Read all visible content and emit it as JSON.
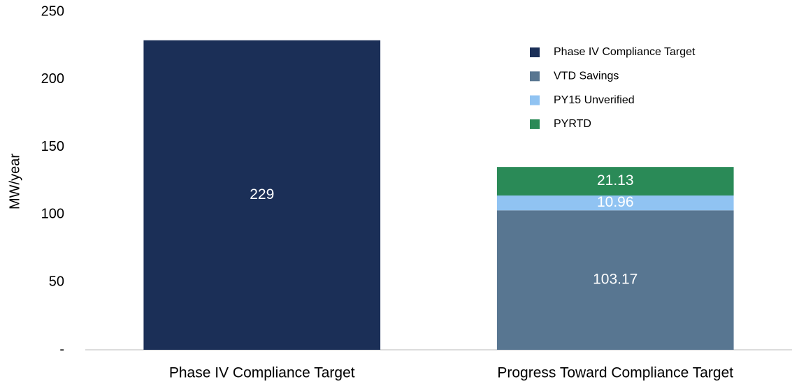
{
  "chart_data": {
    "type": "stacked_bar",
    "y_label": "MW/year",
    "categories": [
      "Phase IV Compliance Target",
      "Progress Toward Compliance Target"
    ],
    "series": [
      {
        "name": "Phase IV Compliance Target",
        "color": "#1b2f57",
        "values": [
          229,
          null
        ]
      },
      {
        "name": "VTD Savings",
        "color": "#587691",
        "values": [
          null,
          103.17
        ]
      },
      {
        "name": "PY15 Unverified",
        "color": "#90c3f2",
        "values": [
          null,
          10.96
        ]
      },
      {
        "name": "PYRTD",
        "color": "#2a8a57",
        "values": [
          null,
          21.13
        ]
      }
    ],
    "ylim": [
      0,
      250
    ],
    "yticks": [
      {
        "value": 0,
        "label": "-"
      },
      50,
      100,
      150,
      200,
      250
    ],
    "legend": "top-right"
  }
}
